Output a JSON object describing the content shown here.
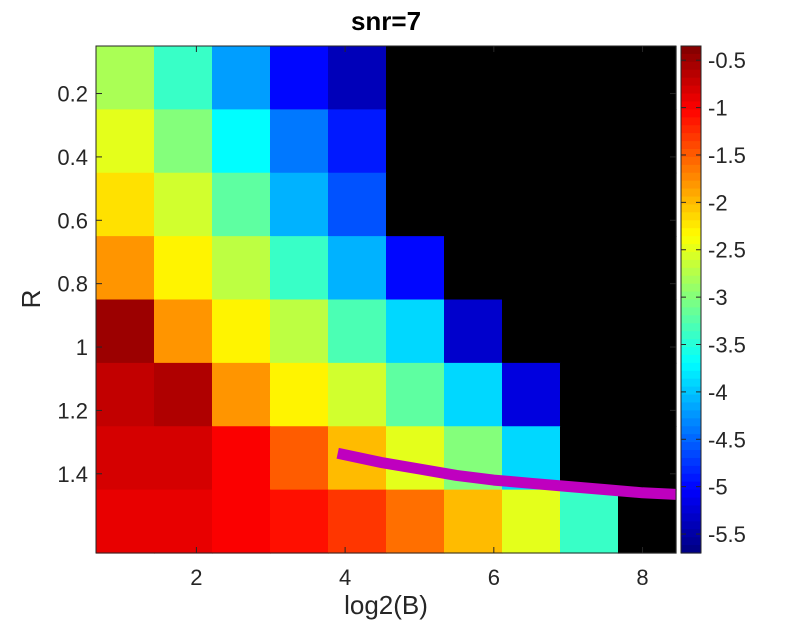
{
  "chart_data": {
    "type": "heatmap",
    "title": "snr=7",
    "xlabel": "log2(B)",
    "ylabel": "R",
    "x": [
      1,
      2,
      3,
      4,
      5,
      6,
      7,
      8,
      9,
      10
    ],
    "y": [
      0.1,
      0.3,
      0.5,
      0.7,
      0.9,
      1.1,
      1.3,
      1.5
    ],
    "xlim": [
      0.65,
      8.45
    ],
    "ylim": [
      0.05,
      1.65
    ],
    "xticks": [
      2,
      4,
      6,
      8
    ],
    "xtick_labels": [
      "2",
      "4",
      "6",
      "8"
    ],
    "yticks": [
      0.2,
      0.4,
      0.6,
      0.8,
      1.0,
      1.2,
      1.4
    ],
    "ytick_labels": [
      "0.2",
      "0.4",
      "0.6",
      "0.8",
      "1",
      "1.2",
      "1.4"
    ],
    "y_direction": "reversed",
    "colormap": "jet",
    "clim": [
      -5.7,
      -0.35
    ],
    "colorbar_ticks": [
      -0.5,
      -1,
      -1.5,
      -2,
      -2.5,
      -3,
      -3.5,
      -4,
      -4.5,
      -5,
      -5.5
    ],
    "colorbar_tick_labels": [
      "-0.5",
      "-1",
      "-1.5",
      "-2",
      "-2.5",
      "-3",
      "-3.5",
      "-4",
      "-4.5",
      "-5",
      "-5.5"
    ],
    "undefined_color": "#000000",
    "values": [
      [
        -2.8,
        -3.4,
        -4.2,
        -5.0,
        -5.4,
        null,
        null,
        null,
        null,
        null
      ],
      [
        -2.5,
        -3.0,
        -3.7,
        -4.4,
        -4.9,
        null,
        null,
        null,
        null,
        null
      ],
      [
        -2.2,
        -2.6,
        -3.2,
        -4.1,
        -4.6,
        null,
        null,
        null,
        null,
        null
      ],
      [
        -1.8,
        -2.3,
        -2.7,
        -3.4,
        -4.1,
        -5.0,
        null,
        null,
        null,
        null
      ],
      [
        -0.5,
        -1.8,
        -2.3,
        -2.7,
        -3.3,
        -3.9,
        -5.3,
        null,
        null,
        null
      ],
      [
        -0.7,
        -0.6,
        -1.8,
        -2.3,
        -2.6,
        -3.2,
        -3.9,
        -5.2,
        null,
        null
      ],
      [
        -0.8,
        -0.8,
        -1.0,
        -1.5,
        -2.0,
        -2.5,
        -3.0,
        -3.9,
        null,
        null
      ],
      [
        -0.9,
        -0.9,
        -1.0,
        -1.1,
        -1.3,
        -1.6,
        -2.0,
        -2.5,
        -3.4,
        null
      ]
    ],
    "overlay_line": {
      "color": "#bf00bf",
      "x": [
        3.9,
        4.5,
        5.0,
        5.5,
        6.0,
        6.5,
        7.0,
        7.5,
        8.0,
        8.45
      ],
      "y": [
        1.335,
        1.365,
        1.385,
        1.405,
        1.42,
        1.43,
        1.44,
        1.45,
        1.46,
        1.465
      ]
    }
  }
}
